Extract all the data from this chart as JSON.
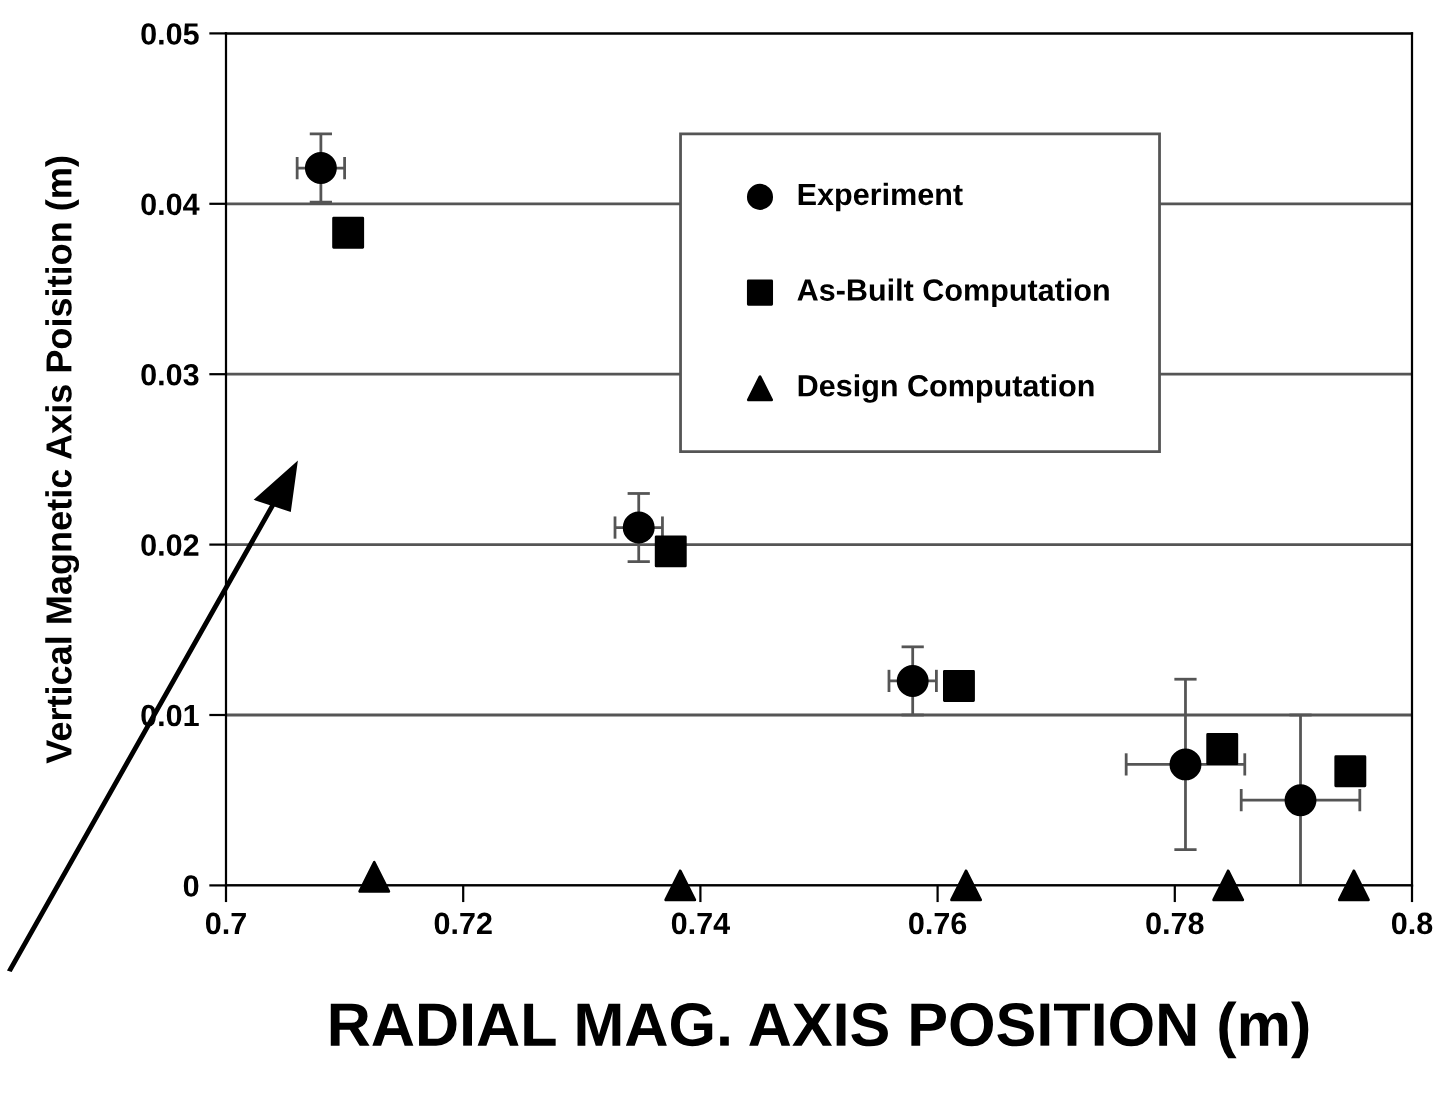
{
  "chart_data": {
    "type": "scatter",
    "xlabel": "RADIAL MAG. AXIS POSITION (m)",
    "ylabel": "Vertical Magnetic Axis Poisition (m)",
    "xlim": [
      0.7,
      0.8
    ],
    "xticks": [
      0.7,
      0.72,
      0.74,
      0.76,
      0.78,
      0.8
    ],
    "ylim": [
      0,
      0.05
    ],
    "yticks": [
      0,
      0.01,
      0.02,
      0.03,
      0.04,
      0.05
    ],
    "grid": "y",
    "legend": "top right",
    "series": [
      {
        "name": "Experiment",
        "color": "#000000",
        "marker": "circle",
        "x": [
          0.708,
          0.7348,
          0.7579,
          0.7809,
          0.7906
        ],
        "values": [
          0.0421,
          0.021,
          0.012,
          0.0071,
          0.005
        ],
        "errors": [
          0.002,
          0.002,
          0.002,
          0.005,
          0.005
        ],
        "xerrors": [
          0.002,
          0.002,
          0.002,
          0.005,
          0.005
        ]
      },
      {
        "name": "As-Built Computation",
        "color": "#000000",
        "marker": "square",
        "x": [
          0.7103,
          0.7375,
          0.7618,
          0.784,
          0.7948
        ],
        "values": [
          0.0383,
          0.0196,
          0.0117,
          0.008,
          0.0067
        ]
      },
      {
        "name": "Design Computation",
        "color": "#000000",
        "marker": "triangle",
        "x": [
          0.7125,
          0.7383,
          0.7624,
          0.7845,
          0.7951
        ],
        "values": [
          0.0005,
          0.0,
          0.0,
          0.0,
          0.0
        ]
      }
    ]
  }
}
